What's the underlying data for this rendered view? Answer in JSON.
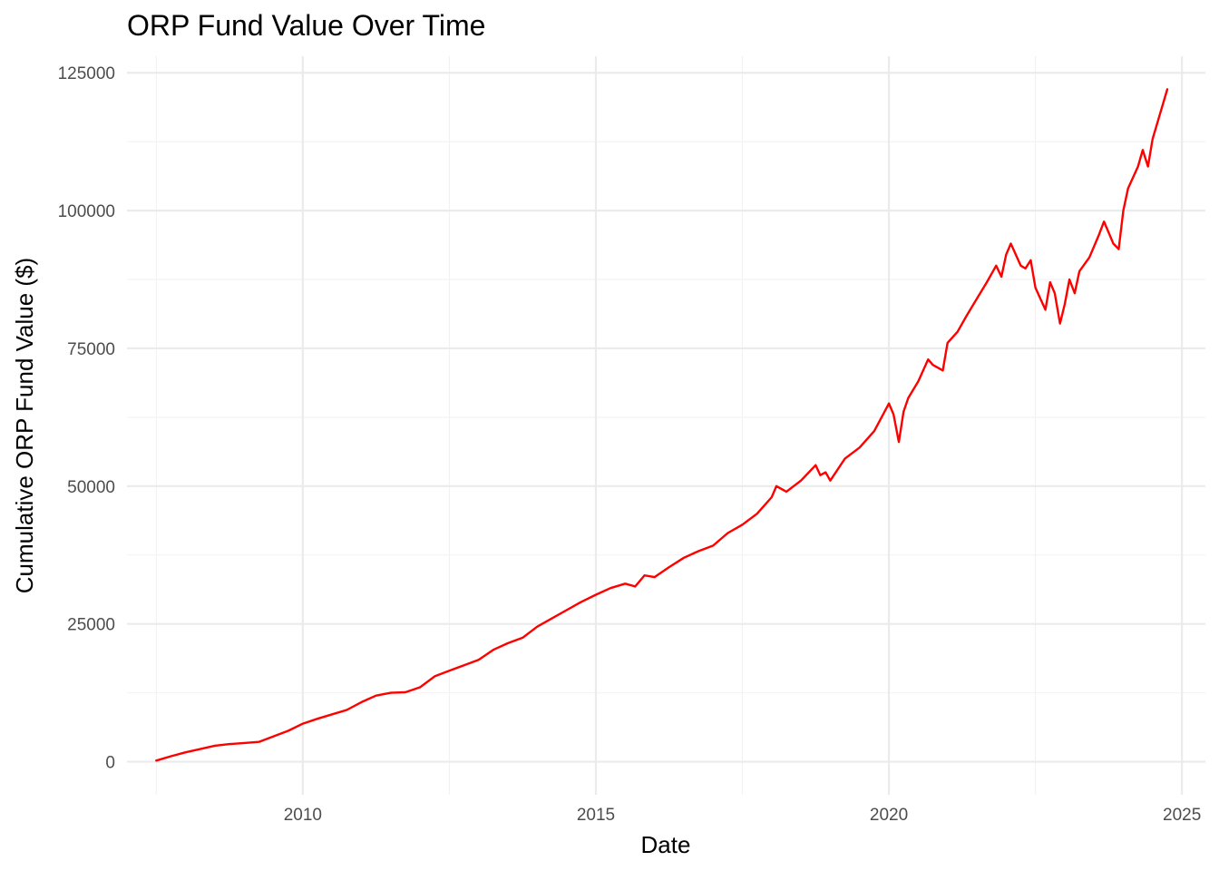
{
  "chart_data": {
    "type": "line",
    "title": "ORP Fund Value Over Time",
    "xlabel": "Date",
    "ylabel": "Cumulative ORP Fund Value ($)",
    "x_ticks": [
      "2010",
      "2015",
      "2020",
      "2025"
    ],
    "y_ticks": [
      "0",
      "25000",
      "50000",
      "75000",
      "100000",
      "125000"
    ],
    "xlim": [
      2007.0,
      2025.4
    ],
    "ylim": [
      -6000,
      128000
    ],
    "grid": true,
    "legend": "none",
    "colors": {
      "line": "#ff0000",
      "grid_major": "#ebebeb",
      "grid_minor": "#f2f2f2"
    },
    "series": [
      {
        "x": [
          2007.5,
          2007.75,
          2008.0,
          2008.25,
          2008.5,
          2008.75,
          2009.0,
          2009.25,
          2009.5,
          2009.75,
          2010.0,
          2010.25,
          2010.5,
          2010.75,
          2011.0,
          2011.25,
          2011.5,
          2011.75,
          2012.0,
          2012.25,
          2012.5,
          2012.75,
          2013.0,
          2013.25,
          2013.5,
          2013.75,
          2014.0,
          2014.25,
          2014.5,
          2014.75,
          2015.0,
          2015.25,
          2015.5,
          2015.67,
          2015.83,
          2016.0,
          2016.25,
          2016.5,
          2016.75,
          2017.0,
          2017.25,
          2017.5,
          2017.75,
          2018.0,
          2018.08,
          2018.25,
          2018.5,
          2018.75,
          2018.83,
          2018.92,
          2019.0,
          2019.25,
          2019.5,
          2019.75,
          2020.0,
          2020.08,
          2020.17,
          2020.25,
          2020.33,
          2020.5,
          2020.67,
          2020.75,
          2020.92,
          2021.0,
          2021.17,
          2021.33,
          2021.5,
          2021.67,
          2021.83,
          2021.92,
          2022.0,
          2022.08,
          2022.25,
          2022.33,
          2022.42,
          2022.5,
          2022.67,
          2022.75,
          2022.83,
          2022.92,
          2023.0,
          2023.08,
          2023.17,
          2023.25,
          2023.42,
          2023.58,
          2023.67,
          2023.83,
          2023.92,
          2024.0,
          2024.08,
          2024.25,
          2024.33,
          2024.42,
          2024.5,
          2024.75
        ],
        "y": [
          200,
          1000,
          1700,
          2300,
          2900,
          3200,
          3400,
          3600,
          4600,
          5600,
          6900,
          7800,
          8600,
          9400,
          10800,
          12000,
          12500,
          12600,
          13500,
          15500,
          16500,
          17500,
          18500,
          20300,
          21500,
          22500,
          24500,
          26000,
          27500,
          29000,
          30300,
          31500,
          32300,
          31800,
          33800,
          33500,
          35300,
          37000,
          38200,
          39200,
          41500,
          43000,
          45000,
          48000,
          50000,
          49000,
          51000,
          53800,
          52000,
          52500,
          51000,
          55000,
          57000,
          60000,
          65000,
          63000,
          58000,
          63500,
          66000,
          69000,
          73000,
          72000,
          71000,
          76000,
          78000,
          81000,
          84000,
          87000,
          90000,
          88000,
          92000,
          94000,
          90000,
          89500,
          91000,
          86000,
          82000,
          87000,
          85000,
          79500,
          83000,
          87500,
          85000,
          89000,
          91500,
          95500,
          98000,
          94000,
          93000,
          100000,
          104000,
          108000,
          111000,
          108000,
          113000,
          122000
        ]
      }
    ]
  }
}
